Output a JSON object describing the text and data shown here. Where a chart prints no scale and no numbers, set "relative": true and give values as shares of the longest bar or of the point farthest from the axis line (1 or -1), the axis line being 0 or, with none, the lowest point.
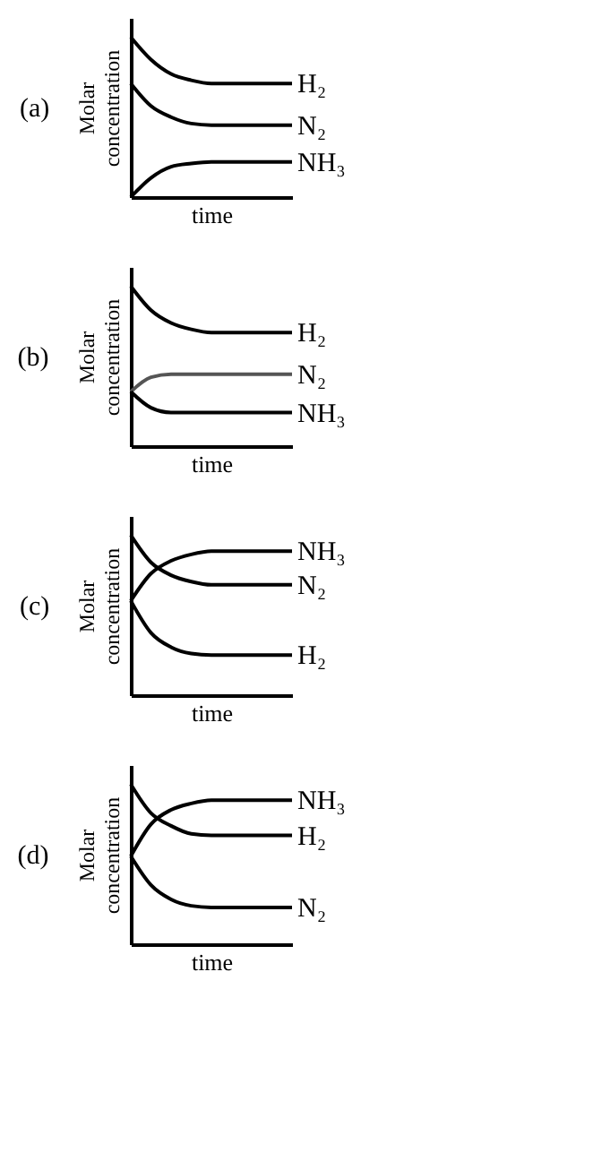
{
  "chart_data": [
    {
      "type": "line",
      "title": "(a)",
      "xlabel": "time",
      "ylabel": "Molar concentration",
      "relative": true,
      "tick_labels": false,
      "categories": [
        null,
        null,
        null,
        null,
        null,
        null,
        null,
        null,
        null
      ],
      "series": [
        {
          "name": "H₂",
          "color": "#000000",
          "values": [
            1,
            0.86,
            0.77,
            0.73,
            0.71,
            0.71,
            0.71,
            0.71,
            0.71
          ]
        },
        {
          "name": "N₂",
          "color": "#000000",
          "values": [
            0.71,
            0.57,
            0.5,
            0.46,
            0.45,
            0.45,
            0.45,
            0.45,
            0.45
          ]
        },
        {
          "name": "NH₃",
          "color": "#000000",
          "values": [
            0,
            0.12,
            0.19,
            0.21,
            0.22,
            0.22,
            0.22,
            0.22,
            0.22
          ]
        }
      ]
    },
    {
      "type": "line",
      "title": "(b)",
      "xlabel": "time",
      "ylabel": "Molar concentration",
      "relative": true,
      "tick_labels": false,
      "categories": [
        null,
        null,
        null,
        null,
        null,
        null,
        null,
        null,
        null
      ],
      "series": [
        {
          "name": "H₂",
          "color": "#000000",
          "values": [
            1,
            0.85,
            0.77,
            0.73,
            0.71,
            0.71,
            0.71,
            0.71,
            0.71
          ]
        },
        {
          "name": "N₂",
          "color": "#555555",
          "values": [
            0.34,
            0.43,
            0.45,
            0.45,
            0.45,
            0.45,
            0.45,
            0.45,
            0.45
          ]
        },
        {
          "name": "NH₃",
          "color": "#000000",
          "values": [
            0.34,
            0.24,
            0.21,
            0.21,
            0.21,
            0.21,
            0.21,
            0.21,
            0.21
          ]
        }
      ]
    },
    {
      "type": "line",
      "title": "(c)",
      "xlabel": "time",
      "ylabel": "Molar concentration",
      "relative": true,
      "tick_labels": false,
      "categories": [
        null,
        null,
        null,
        null,
        null,
        null,
        null,
        null,
        null
      ],
      "series": [
        {
          "name": "NH₃",
          "color": "#000000",
          "values": [
            0.59,
            0.76,
            0.84,
            0.88,
            0.9,
            0.9,
            0.9,
            0.9,
            0.9
          ]
        },
        {
          "name": "N₂",
          "color": "#000000",
          "values": [
            1,
            0.83,
            0.75,
            0.71,
            0.69,
            0.69,
            0.69,
            0.69,
            0.69
          ]
        },
        {
          "name": "H₂",
          "color": "#000000",
          "values": [
            0.59,
            0.39,
            0.3,
            0.26,
            0.25,
            0.25,
            0.25,
            0.25,
            0.25
          ]
        }
      ]
    },
    {
      "type": "line",
      "title": "(d)",
      "xlabel": "time",
      "ylabel": "Molar concentration",
      "relative": true,
      "tick_labels": false,
      "categories": [
        null,
        null,
        null,
        null,
        null,
        null,
        null,
        null,
        null
      ],
      "series": [
        {
          "name": "NH₃",
          "color": "#000000",
          "values": [
            0.55,
            0.75,
            0.84,
            0.88,
            0.9,
            0.9,
            0.9,
            0.9,
            0.9
          ]
        },
        {
          "name": "H₂",
          "color": "#000000",
          "values": [
            1,
            0.82,
            0.74,
            0.69,
            0.68,
            0.68,
            0.68,
            0.68,
            0.68
          ]
        },
        {
          "name": "N₂",
          "color": "#000000",
          "values": [
            0.55,
            0.37,
            0.28,
            0.24,
            0.23,
            0.23,
            0.23,
            0.23,
            0.23
          ]
        }
      ]
    }
  ]
}
